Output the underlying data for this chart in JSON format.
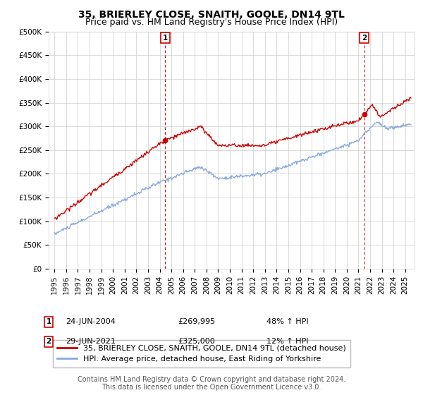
{
  "title": "35, BRIERLEY CLOSE, SNAITH, GOOLE, DN14 9TL",
  "subtitle": "Price paid vs. HM Land Registry's House Price Index (HPI)",
  "ylim": [
    0,
    500000
  ],
  "yticks": [
    0,
    50000,
    100000,
    150000,
    200000,
    250000,
    300000,
    350000,
    400000,
    450000,
    500000
  ],
  "ytick_labels": [
    "£0",
    "£50K",
    "£100K",
    "£150K",
    "£200K",
    "£250K",
    "£300K",
    "£350K",
    "£400K",
    "£450K",
    "£500K"
  ],
  "red_line_color": "#cc0000",
  "blue_line_color": "#88aadd",
  "vline_color": "#cc0000",
  "background_color": "#ffffff",
  "grid_color": "#cccccc",
  "transaction1": {
    "date": "24-JUN-2004",
    "price": "£269,995",
    "pct": "48%",
    "dir": "↑",
    "label": "1"
  },
  "transaction2": {
    "date": "29-JUN-2021",
    "price": "£325,000",
    "pct": "12%",
    "dir": "↑",
    "label": "2"
  },
  "legend_red": "35, BRIERLEY CLOSE, SNAITH, GOOLE, DN14 9TL (detached house)",
  "legend_blue": "HPI: Average price, detached house, East Riding of Yorkshire",
  "footer": "Contains HM Land Registry data © Crown copyright and database right 2024.\nThis data is licensed under the Open Government Licence v3.0.",
  "title_fontsize": 10,
  "subtitle_fontsize": 9,
  "tick_fontsize": 7.5,
  "legend_fontsize": 8,
  "footer_fontsize": 7,
  "sale1_year": 2004.48,
  "sale1_price": 269995,
  "sale2_year": 2021.49,
  "sale2_price": 325000,
  "xlim_left": 1994.5,
  "xlim_right": 2025.8
}
